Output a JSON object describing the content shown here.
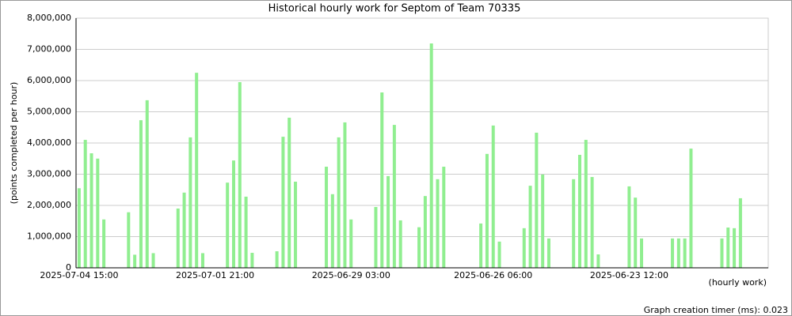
{
  "chart_data": {
    "type": "bar",
    "title": "Historical hourly work for Septom of Team 70335",
    "y_label": "(points completed per hour)",
    "x_label": "(hourly work)",
    "footer": "Graph creation timer (ms): 0.023",
    "color": "#90ee90",
    "grid": true,
    "ylim": [
      0,
      8000000
    ],
    "yticks": [
      {
        "value": 0,
        "label": "0"
      },
      {
        "value": 1000000,
        "label": "1,000,000"
      },
      {
        "value": 2000000,
        "label": "2,000,000"
      },
      {
        "value": 3000000,
        "label": "3,000,000"
      },
      {
        "value": 4000000,
        "label": "4,000,000"
      },
      {
        "value": 5000000,
        "label": "5,000,000"
      },
      {
        "value": 6000000,
        "label": "6,000,000"
      },
      {
        "value": 7000000,
        "label": "7,000,000"
      },
      {
        "value": 8000000,
        "label": "8,000,000"
      }
    ],
    "categories": [
      "2025-07-04 15:00",
      null,
      null,
      null,
      null,
      null,
      null,
      null,
      null,
      null,
      null,
      null,
      null,
      null,
      null,
      null,
      null,
      null,
      null,
      null,
      null,
      null,
      "2025-07-01 21:00",
      null,
      null,
      null,
      null,
      null,
      null,
      null,
      null,
      null,
      null,
      null,
      null,
      null,
      null,
      null,
      null,
      null,
      null,
      null,
      null,
      null,
      "2025-06-29 03:00",
      null,
      null,
      null,
      null,
      null,
      null,
      null,
      null,
      null,
      null,
      null,
      null,
      null,
      null,
      null,
      null,
      null,
      null,
      null,
      null,
      null,
      null,
      "2025-06-26 06:00",
      null,
      null,
      null,
      null,
      null,
      null,
      null,
      null,
      null,
      null,
      null,
      null,
      null,
      null,
      null,
      null,
      null,
      null,
      null,
      null,
      null,
      "2025-06-23 12:00",
      null,
      null,
      null,
      null,
      null,
      null,
      null,
      null,
      null,
      null,
      null,
      null,
      null,
      null,
      null,
      null,
      null,
      null,
      null,
      null,
      null,
      null
    ],
    "values": [
      2550000,
      4100000,
      3670000,
      3500000,
      1550000,
      0,
      0,
      0,
      1780000,
      420000,
      4730000,
      5370000,
      470000,
      0,
      0,
      0,
      1900000,
      2410000,
      4180000,
      6250000,
      470000,
      0,
      0,
      0,
      2730000,
      3440000,
      5950000,
      2280000,
      480000,
      0,
      0,
      0,
      530000,
      4200000,
      4810000,
      2760000,
      0,
      0,
      0,
      0,
      3240000,
      2360000,
      4180000,
      4660000,
      1550000,
      0,
      0,
      0,
      1950000,
      5620000,
      2940000,
      4580000,
      1520000,
      0,
      0,
      1300000,
      2300000,
      7190000,
      2840000,
      3240000,
      0,
      0,
      0,
      0,
      0,
      1420000,
      3650000,
      4560000,
      840000,
      0,
      0,
      0,
      1270000,
      2630000,
      4330000,
      2990000,
      940000,
      0,
      0,
      0,
      2840000,
      3620000,
      4100000,
      2910000,
      430000,
      0,
      0,
      0,
      0,
      2610000,
      2250000,
      940000,
      0,
      0,
      0,
      0,
      940000,
      940000,
      940000,
      3820000,
      0,
      0,
      0,
      0,
      940000,
      1290000,
      1270000,
      2230000,
      0,
      0,
      0,
      0
    ]
  }
}
